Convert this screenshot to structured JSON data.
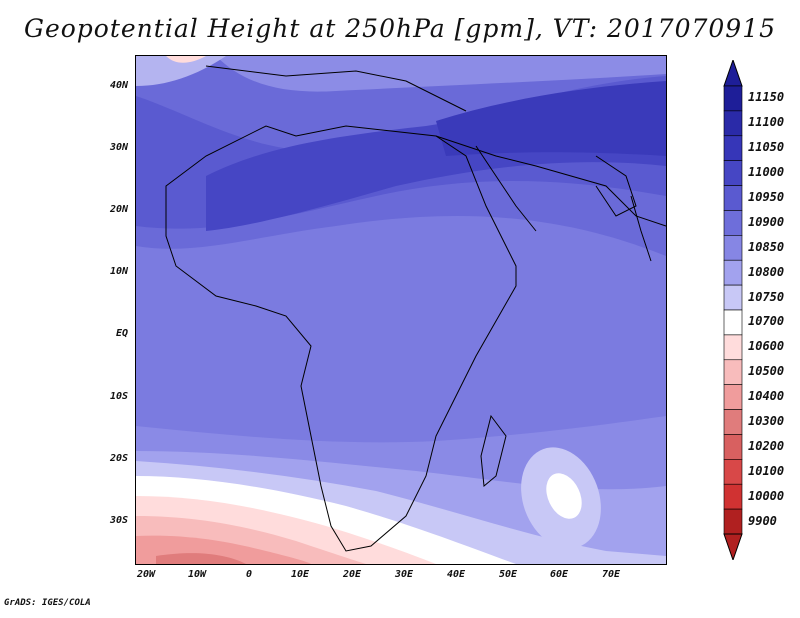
{
  "title": "Geopotential Height at 250hPa [gpm], VT: 2017070915",
  "footer": "GrADS: IGES/COLA",
  "lat_ticks": [
    "40N",
    "30N",
    "20N",
    "10N",
    "EQ",
    "10S",
    "20S",
    "30S"
  ],
  "lon_ticks": [
    "20W",
    "10W",
    "0",
    "10E",
    "20E",
    "30E",
    "40E",
    "50E",
    "60E",
    "70E"
  ],
  "colorbar": {
    "levels": [
      "11150",
      "11100",
      "11050",
      "11000",
      "10950",
      "10900",
      "10850",
      "10800",
      "10750",
      "10700",
      "10600",
      "10500",
      "10400",
      "10300",
      "10200",
      "10100",
      "10000",
      "9900"
    ],
    "colors": [
      "#1e1e98",
      "#2a2aa8",
      "#3636b8",
      "#4646c4",
      "#5a5ad0",
      "#6e6eda",
      "#8686e4",
      "#a2a2ee",
      "#c8c8f6",
      "#ffffff",
      "#ffdcdc",
      "#f8bcbc",
      "#f09c9c",
      "#e07c7c",
      "#d86060",
      "#d84848",
      "#d03232",
      "#b02020"
    ]
  },
  "colors": {
    "subtropical_high": "#4646c4",
    "tropics": "#8080e0",
    "southern_low": "#e07c7c"
  }
}
